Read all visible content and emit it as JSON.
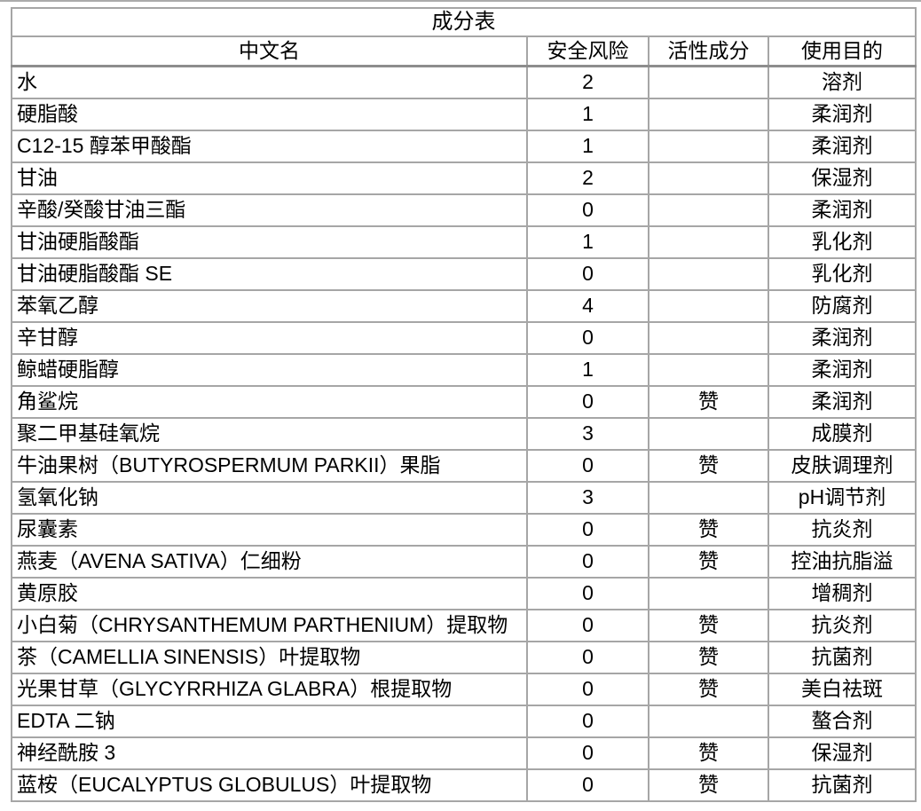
{
  "colors": {
    "background": "#ffffff",
    "text": "#000000",
    "table_border": "#a6a6a6",
    "header_divider": "#8d8d8d"
  },
  "table": {
    "title": "成分表",
    "headers": {
      "name": "中文名",
      "risk": "安全风险",
      "active": "活性成分",
      "purpose": "使用目的"
    },
    "rows": [
      {
        "name": "水",
        "risk": "2",
        "active": "",
        "purpose": "溶剂"
      },
      {
        "name": "硬脂酸",
        "risk": "1",
        "active": "",
        "purpose": "柔润剂"
      },
      {
        "name": "C12-15 醇苯甲酸酯",
        "risk": "1",
        "active": "",
        "purpose": "柔润剂"
      },
      {
        "name": "甘油",
        "risk": "2",
        "active": "",
        "purpose": "保湿剂"
      },
      {
        "name": "辛酸/癸酸甘油三酯",
        "risk": "0",
        "active": "",
        "purpose": "柔润剂"
      },
      {
        "name": "甘油硬脂酸酯",
        "risk": "1",
        "active": "",
        "purpose": "乳化剂"
      },
      {
        "name": "甘油硬脂酸酯 SE",
        "risk": "0",
        "active": "",
        "purpose": "乳化剂"
      },
      {
        "name": "苯氧乙醇",
        "risk": "4",
        "active": "",
        "purpose": "防腐剂"
      },
      {
        "name": "辛甘醇",
        "risk": "0",
        "active": "",
        "purpose": "柔润剂"
      },
      {
        "name": "鲸蜡硬脂醇",
        "risk": "1",
        "active": "",
        "purpose": "柔润剂"
      },
      {
        "name": "角鲨烷",
        "risk": "0",
        "active": "赞",
        "purpose": "柔润剂"
      },
      {
        "name": "聚二甲基硅氧烷",
        "risk": "3",
        "active": "",
        "purpose": "成膜剂"
      },
      {
        "name": "牛油果树（BUTYROSPERMUM PARKII）果脂",
        "risk": "0",
        "active": "赞",
        "purpose": "皮肤调理剂"
      },
      {
        "name": "氢氧化钠",
        "risk": "3",
        "active": "",
        "purpose": "pH调节剂"
      },
      {
        "name": "尿囊素",
        "risk": "0",
        "active": "赞",
        "purpose": "抗炎剂"
      },
      {
        "name": "燕麦（AVENA SATIVA）仁细粉",
        "risk": "0",
        "active": "赞",
        "purpose": "控油抗脂溢"
      },
      {
        "name": "黄原胶",
        "risk": "0",
        "active": "",
        "purpose": "增稠剂"
      },
      {
        "name": "小白菊（CHRYSANTHEMUM PARTHENIUM）提取物",
        "risk": "0",
        "active": "赞",
        "purpose": "抗炎剂"
      },
      {
        "name": "茶（CAMELLIA SINENSIS）叶提取物",
        "risk": "0",
        "active": "赞",
        "purpose": "抗菌剂"
      },
      {
        "name": "光果甘草（GLYCYRRHIZA GLABRA）根提取物",
        "risk": "0",
        "active": "赞",
        "purpose": "美白祛斑"
      },
      {
        "name": "EDTA 二钠",
        "risk": "0",
        "active": "",
        "purpose": "螯合剂"
      },
      {
        "name": "神经酰胺 3",
        "risk": "0",
        "active": "赞",
        "purpose": "保湿剂"
      },
      {
        "name": "蓝桉（EUCALYPTUS GLOBULUS）叶提取物",
        "risk": "0",
        "active": "赞",
        "purpose": "抗菌剂"
      }
    ]
  }
}
